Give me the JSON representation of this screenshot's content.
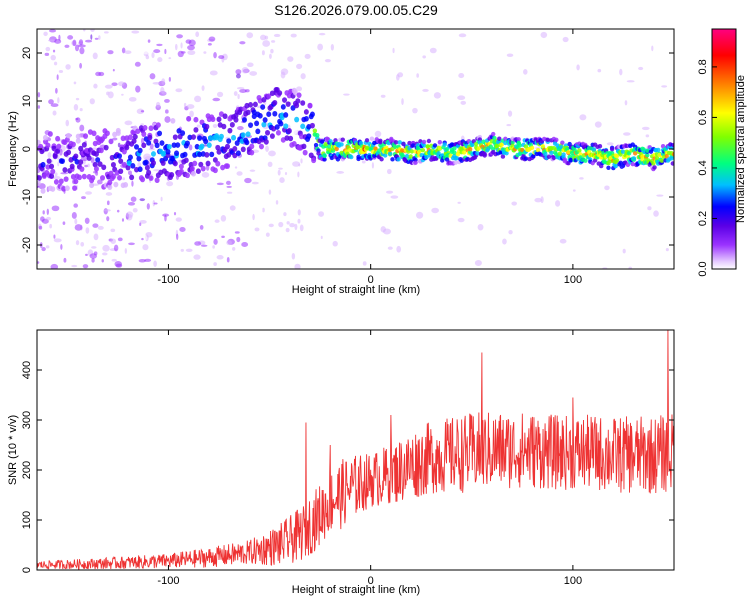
{
  "title": "S126.2026.079.00.05.C29",
  "chart_data": [
    {
      "type": "heatmap",
      "title": "",
      "xlabel": "Height of straight line (km)",
      "ylabel": "Frequency (Hz)",
      "xlim": [
        -165,
        150
      ],
      "ylim": [
        -25,
        25
      ],
      "x_tick_labels": [
        "-100",
        "0",
        "100"
      ],
      "x_ticks": [
        -100,
        0,
        100
      ],
      "y_tick_labels": [
        "-20",
        "-10",
        "0",
        "10",
        "20"
      ],
      "y_ticks": [
        -20,
        -10,
        0,
        10,
        20
      ],
      "colorbar": {
        "label": "Normalized spectral amplitude",
        "range": [
          0,
          0.95
        ],
        "tick_labels": [
          "0.0",
          "0.2",
          "0.4",
          "0.6",
          "0.8"
        ],
        "ticks": [
          0,
          0.2,
          0.4,
          0.6,
          0.8
        ],
        "colormap": [
          "#ffffff",
          "#d9b3ff",
          "#9b33ff",
          "#5a00e6",
          "#0000ff",
          "#00bfff",
          "#00ff80",
          "#80ff00",
          "#ffff00",
          "#ff8000",
          "#ff0000",
          "#ff0080"
        ]
      },
      "ridge_center_hz": {
        "heights_km": [
          -165,
          -140,
          -120,
          -100,
          -80,
          -60,
          -45,
          -35,
          -28,
          -25,
          -20,
          -10,
          0,
          10,
          20,
          30,
          40,
          50,
          60,
          70,
          80,
          90,
          100,
          110,
          120,
          130,
          140,
          150
        ],
        "values": [
          -3,
          -2,
          -2,
          0,
          1,
          4,
          7,
          6,
          3,
          0,
          0,
          0,
          0,
          0,
          -1,
          0,
          -1,
          0,
          1,
          0,
          0,
          0,
          -1,
          -1,
          -2,
          -1,
          -2,
          -1
        ]
      }
    },
    {
      "type": "line",
      "title": "",
      "xlabel": "Height of straight line (km)",
      "ylabel": "SNR (10 * v/v)",
      "xlim": [
        -165,
        150
      ],
      "ylim": [
        0,
        480
      ],
      "x_tick_labels": [
        "-100",
        "0",
        "100"
      ],
      "x_ticks": [
        -100,
        0,
        100
      ],
      "y_tick_labels": [
        "0",
        "100",
        "200",
        "300",
        "400"
      ],
      "y_ticks": [
        0,
        100,
        200,
        300,
        400
      ],
      "color": "#ee3333",
      "trend": {
        "heights_km": [
          -165,
          -140,
          -120,
          -100,
          -80,
          -60,
          -45,
          -35,
          -25,
          -20,
          -15,
          -10,
          0,
          10,
          20,
          30,
          40,
          50,
          60,
          70,
          80,
          90,
          100,
          110,
          120,
          130,
          140,
          150
        ],
        "values": [
          10,
          12,
          15,
          18,
          25,
          35,
          50,
          70,
          110,
          140,
          150,
          165,
          180,
          190,
          210,
          225,
          230,
          235,
          240,
          240,
          240,
          235,
          235,
          235,
          230,
          230,
          230,
          235
        ]
      },
      "noise_amplitude": {
        "heights_km": [
          -165,
          -100,
          -60,
          -30,
          -15,
          0,
          20,
          50,
          100,
          150
        ],
        "values": [
          8,
          15,
          25,
          60,
          70,
          55,
          70,
          80,
          75,
          80
        ]
      },
      "peaks": [
        {
          "x": -32,
          "y": 295
        },
        {
          "x": -20,
          "y": 250
        },
        {
          "x": 10,
          "y": 310
        },
        {
          "x": 55,
          "y": 435
        },
        {
          "x": 100,
          "y": 345
        },
        {
          "x": 147,
          "y": 480
        }
      ]
    }
  ]
}
